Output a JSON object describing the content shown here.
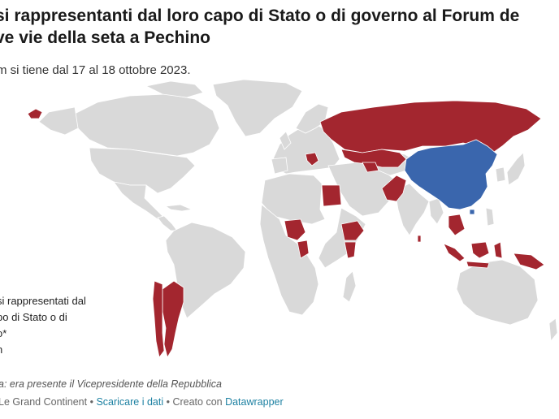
{
  "title_line1": "si rappresentanti dal loro capo di Stato o di governo al Forum de",
  "title_line2": "ve vie della seta a Pechino",
  "subtitle": "m si tiene dal 17 al 18 ottobre 2023.",
  "legend": {
    "line1": "si rappresentati dal",
    "line2": "po di Stato o di",
    "line3": "o*",
    "line4": "n"
  },
  "note": "a: era presente il Vicepresidente della Repubblica",
  "source": {
    "prefix": "Le Grand Continent",
    "sep1": " • ",
    "download_label": "Scaricare i dati",
    "sep2": " • ",
    "created_with": "Creato con ",
    "datawrapper_label": "Datawrapper"
  },
  "colors": {
    "represented": "#a3262f",
    "host_china": "#3a66ad",
    "other": "#d9d9d9"
  },
  "map_data": {
    "host": [
      "China"
    ],
    "represented_by_head_of_state_or_government": [
      "Russia",
      "Kazakhstan",
      "Mongolia",
      "Pakistan",
      "Egypt",
      "Nigeria",
      "Ethiopia",
      "Kenya",
      "Republic of the Congo",
      "Argentina",
      "Chile",
      "Indonesia",
      "Papua New Guinea",
      "Cambodia",
      "Laos",
      "Vietnam",
      "Thailand",
      "Hungary",
      "Serbia",
      "Uzbekistan",
      "Turkmenistan",
      "Sri Lanka",
      "Iceland"
    ]
  }
}
